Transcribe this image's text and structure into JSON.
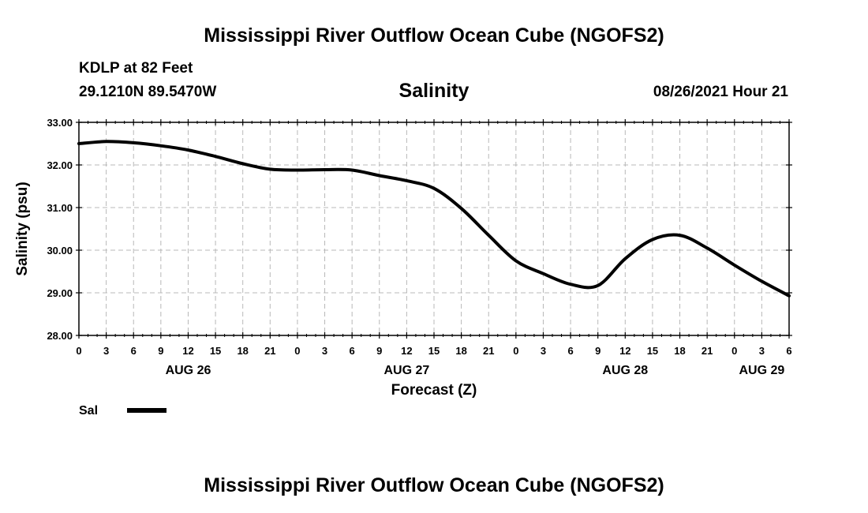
{
  "header": {
    "title": "Mississippi River Outflow Ocean Cube (NGOFS2)",
    "station": "KDLP at 82 Feet",
    "coords": "29.1210N  89.5470W",
    "variable": "Salinity",
    "datetime": "08/26/2021 Hour 21"
  },
  "footer": {
    "title": "Mississippi River Outflow Ocean Cube (NGOFS2)"
  },
  "legend": {
    "label": "Sal",
    "color": "#000000"
  },
  "chart_data": {
    "type": "line",
    "title": "Salinity",
    "xlabel": "Forecast (Z)",
    "ylabel": "Salinity (psu)",
    "ylim": [
      28.0,
      33.0
    ],
    "xlim": [
      0,
      78
    ],
    "grid": true,
    "legend_position": "bottom-left",
    "y_ticks": [
      "28.00",
      "29.00",
      "30.00",
      "31.00",
      "32.00",
      "33.00"
    ],
    "x_tick_labels": [
      "0",
      "3",
      "6",
      "9",
      "12",
      "15",
      "18",
      "21",
      "0",
      "3",
      "6",
      "9",
      "12",
      "15",
      "18",
      "21",
      "0",
      "3",
      "6",
      "9",
      "12",
      "15",
      "18",
      "21",
      "0",
      "3",
      "6"
    ],
    "date_labels": [
      {
        "label": "AUG 26",
        "hour": 12
      },
      {
        "label": "AUG 27",
        "hour": 36
      },
      {
        "label": "AUG 28",
        "hour": 60
      },
      {
        "label": "AUG 29",
        "hour": 75
      }
    ],
    "series": [
      {
        "name": "Sal",
        "x": [
          0,
          3,
          6,
          9,
          12,
          15,
          18,
          21,
          24,
          27,
          30,
          33,
          36,
          39,
          42,
          45,
          48,
          51,
          54,
          57,
          60,
          63,
          66,
          69,
          72,
          75,
          78
        ],
        "values": [
          32.5,
          32.55,
          32.52,
          32.45,
          32.35,
          32.2,
          32.03,
          31.9,
          31.88,
          31.89,
          31.88,
          31.75,
          31.63,
          31.45,
          30.98,
          30.35,
          29.75,
          29.45,
          29.2,
          29.17,
          29.8,
          30.25,
          30.35,
          30.05,
          29.65,
          29.27,
          28.93
        ]
      }
    ]
  }
}
